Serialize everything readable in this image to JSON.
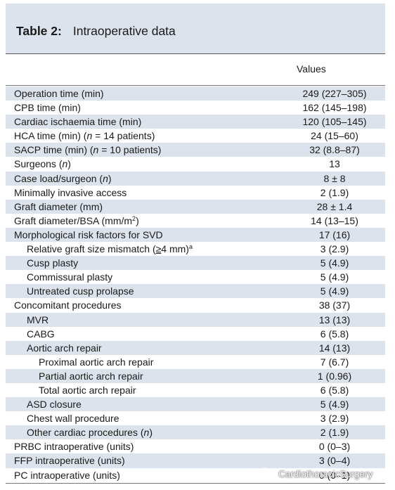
{
  "table": {
    "title_number": "Table 2:",
    "title_caption": "Intraoperative data",
    "column_header": "Values",
    "rows": [
      {
        "label": "Operation time (min)",
        "value": "249 (227–305)",
        "indent": 0
      },
      {
        "label": "CPB time (min)",
        "value": "162 (145–198)",
        "indent": 0
      },
      {
        "label": "Cardiac ischaemia time (min)",
        "value": "120 (105–145)",
        "indent": 0
      },
      {
        "label_parts": [
          "HCA time (min) (",
          "n",
          " = 14 patients)"
        ],
        "value": "24 (15–60)",
        "indent": 0
      },
      {
        "label_parts": [
          "SACP time (min) (",
          "n",
          " = 10 patients)"
        ],
        "value": "32 (8.8–87)",
        "indent": 0
      },
      {
        "label_parts": [
          "Surgeons (",
          "n",
          ")"
        ],
        "value": "13",
        "indent": 0
      },
      {
        "label_parts": [
          "Case load/surgeon (",
          "n",
          ")"
        ],
        "value": "8 ± 8",
        "indent": 0
      },
      {
        "label": "Minimally invasive access",
        "value": "2 (1.9)",
        "indent": 0
      },
      {
        "label": "Graft diameter (mm)",
        "value": "28 ± 1.4",
        "indent": 0
      },
      {
        "label_parts": [
          "Graft diameter/BSA (mm/m",
          "2",
          ")"
        ],
        "value": "14 (13–15)",
        "indent": 0
      },
      {
        "label": "Morphological risk factors for SVD",
        "value": "17 (16)",
        "indent": 0
      },
      {
        "label_parts": [
          "Relative graft size mismatch (",
          "≥",
          "4 mm)",
          "a"
        ],
        "value": "3 (2.9)",
        "indent": 1
      },
      {
        "label": "Cusp plasty",
        "value": "5 (4.9)",
        "indent": 1
      },
      {
        "label": "Commissural plasty",
        "value": "5 (4.9)",
        "indent": 1
      },
      {
        "label": "Untreated cusp prolapse",
        "value": "5 (4.9)",
        "indent": 1
      },
      {
        "label": "Concomitant procedures",
        "value": "38 (37)",
        "indent": 0
      },
      {
        "label": "MVR",
        "value": "13 (13)",
        "indent": 1
      },
      {
        "label": "CABG",
        "value": "6 (5.8)",
        "indent": 1
      },
      {
        "label": "Aortic arch repair",
        "value": "14 (13)",
        "indent": 1
      },
      {
        "label": "Proximal aortic arch repair",
        "value": "7 (6.7)",
        "indent": 2
      },
      {
        "label": "Partial aortic arch repair",
        "value": "1 (0.96)",
        "indent": 2
      },
      {
        "label": "Total aortic arch repair",
        "value": "6 (5.8)",
        "indent": 2
      },
      {
        "label": "ASD closure",
        "value": "5 (4.9)",
        "indent": 1
      },
      {
        "label": "Chest wall procedure",
        "value": "3 (2.9)",
        "indent": 1
      },
      {
        "label_parts": [
          "Other cardiac procedures (",
          "n",
          ")"
        ],
        "value": "2 (1.9)",
        "indent": 1
      },
      {
        "label": "PRBC intraoperative (units)",
        "value": "0 (0–3)",
        "indent": 0
      },
      {
        "label": "FFP intraoperative (units)",
        "value": "3 (0–4)",
        "indent": 0
      },
      {
        "label": "PC intraoperative (units)",
        "value": "0 (0–1)",
        "indent": 0
      }
    ]
  },
  "watermark": {
    "text": "CardiothoracicSurgery",
    "icon": "wechat-icon"
  }
}
